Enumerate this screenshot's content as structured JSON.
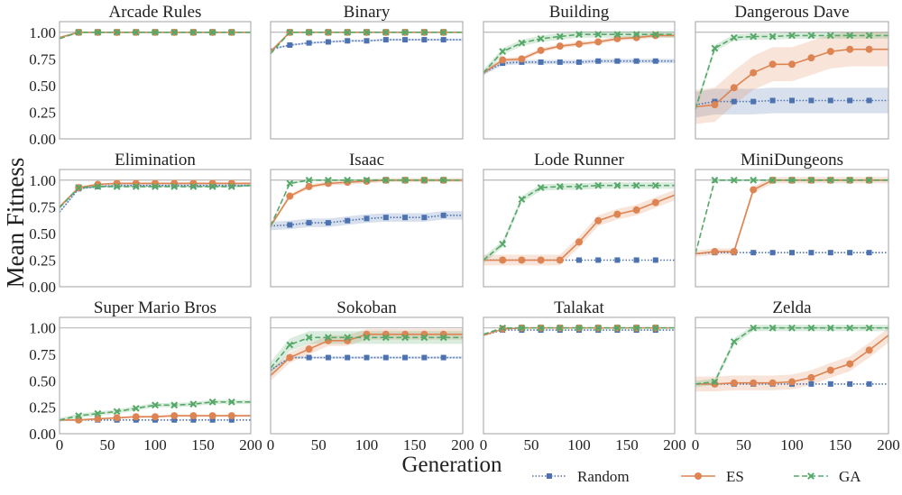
{
  "figure": {
    "ylabel": "Mean Fitness",
    "xlabel": "Generation",
    "legend": [
      {
        "name": "Random",
        "color": "#4c72b0",
        "marker": "square",
        "linestyle": "dotted"
      },
      {
        "name": "ES",
        "color": "#dd8452",
        "marker": "circle",
        "linestyle": "solid"
      },
      {
        "name": "GA",
        "color": "#55a868",
        "marker": "x",
        "linestyle": "dashed"
      }
    ],
    "legend_placement": "bottom-right"
  },
  "chart_data": [
    {
      "type": "line",
      "title": "Arcade Rules",
      "xlim": [
        0,
        200
      ],
      "ylim": [
        0,
        1.1
      ],
      "xticks": [
        0,
        50,
        100,
        150,
        200
      ],
      "yticks": [
        "0.00",
        "0.25",
        "0.50",
        "0.75",
        "1.00"
      ],
      "reference_line": 1.0,
      "x": [
        0,
        20,
        40,
        60,
        80,
        100,
        120,
        140,
        160,
        180,
        200
      ],
      "series": [
        {
          "name": "Random",
          "values": [
            0.95,
            1,
            1,
            1,
            1,
            1,
            1,
            1,
            1,
            1,
            1
          ],
          "band": 0.0
        },
        {
          "name": "ES",
          "values": [
            0.95,
            1,
            1,
            1,
            1,
            1,
            1,
            1,
            1,
            1,
            1
          ],
          "band": 0.0
        },
        {
          "name": "GA",
          "values": [
            0.94,
            1,
            1,
            1,
            1,
            1,
            1,
            1,
            1,
            1,
            1
          ],
          "band": 0.0
        }
      ]
    },
    {
      "type": "line",
      "title": "Binary",
      "xlim": [
        0,
        200
      ],
      "ylim": [
        0,
        1.1
      ],
      "xticks": [
        0,
        50,
        100,
        150,
        200
      ],
      "yticks": [
        "0.00",
        "0.25",
        "0.50",
        "0.75",
        "1.00"
      ],
      "reference_line": 1.0,
      "x": [
        0,
        20,
        40,
        60,
        80,
        100,
        120,
        140,
        160,
        180,
        200
      ],
      "series": [
        {
          "name": "Random",
          "values": [
            0.84,
            0.88,
            0.9,
            0.91,
            0.92,
            0.92,
            0.93,
            0.93,
            0.93,
            0.93,
            0.93
          ],
          "band": 0.01
        },
        {
          "name": "ES",
          "values": [
            0.82,
            1,
            1,
            1,
            1,
            1,
            1,
            1,
            1,
            1,
            1
          ],
          "band": 0.0
        },
        {
          "name": "GA",
          "values": [
            0.8,
            1,
            1,
            1,
            1,
            1,
            1,
            1,
            1,
            1,
            1
          ],
          "band": 0.0
        }
      ]
    },
    {
      "type": "line",
      "title": "Building",
      "xlim": [
        0,
        200
      ],
      "ylim": [
        0,
        1.1
      ],
      "xticks": [
        0,
        50,
        100,
        150,
        200
      ],
      "yticks": [
        "0.00",
        "0.25",
        "0.50",
        "0.75",
        "1.00"
      ],
      "reference_line": 1.0,
      "x": [
        0,
        20,
        40,
        60,
        80,
        100,
        120,
        140,
        160,
        180,
        200
      ],
      "series": [
        {
          "name": "Random",
          "values": [
            0.62,
            0.71,
            0.72,
            0.72,
            0.72,
            0.72,
            0.73,
            0.73,
            0.73,
            0.73,
            0.73
          ],
          "band": 0.02
        },
        {
          "name": "ES",
          "values": [
            0.62,
            0.74,
            0.75,
            0.83,
            0.87,
            0.89,
            0.91,
            0.94,
            0.95,
            0.97,
            0.97
          ],
          "band": 0.02
        },
        {
          "name": "GA",
          "values": [
            0.62,
            0.82,
            0.9,
            0.94,
            0.96,
            0.98,
            0.98,
            0.98,
            0.98,
            0.98,
            0.98
          ],
          "band": 0.03
        }
      ]
    },
    {
      "type": "line",
      "title": "Dangerous Dave",
      "xlim": [
        0,
        200
      ],
      "ylim": [
        0,
        1.1
      ],
      "xticks": [
        0,
        50,
        100,
        150,
        200
      ],
      "yticks": [
        "0.00",
        "0.25",
        "0.50",
        "0.75",
        "1.00"
      ],
      "reference_line": 1.0,
      "x": [
        0,
        20,
        40,
        60,
        80,
        100,
        120,
        140,
        160,
        180,
        200
      ],
      "series": [
        {
          "name": "Random",
          "values": [
            0.32,
            0.35,
            0.35,
            0.35,
            0.36,
            0.36,
            0.36,
            0.36,
            0.36,
            0.36,
            0.36
          ],
          "band": 0.12
        },
        {
          "name": "ES",
          "values": [
            0.3,
            0.32,
            0.48,
            0.62,
            0.7,
            0.7,
            0.76,
            0.82,
            0.84,
            0.84,
            0.84
          ],
          "band": 0.16
        },
        {
          "name": "GA",
          "values": [
            0.28,
            0.85,
            0.95,
            0.96,
            0.96,
            0.97,
            0.97,
            0.97,
            0.97,
            0.97,
            0.97
          ],
          "band": 0.03
        }
      ]
    },
    {
      "type": "line",
      "title": "Elimination",
      "xlim": [
        0,
        200
      ],
      "ylim": [
        0,
        1.1
      ],
      "xticks": [
        0,
        50,
        100,
        150,
        200
      ],
      "yticks": [
        "0.00",
        "0.25",
        "0.50",
        "0.75",
        "1.00"
      ],
      "reference_line": 1.0,
      "x": [
        0,
        20,
        40,
        60,
        80,
        100,
        120,
        140,
        160,
        180,
        200
      ],
      "series": [
        {
          "name": "Random",
          "values": [
            0.7,
            0.92,
            0.94,
            0.95,
            0.95,
            0.95,
            0.95,
            0.95,
            0.95,
            0.95,
            0.95
          ],
          "band": 0.01
        },
        {
          "name": "ES",
          "values": [
            0.75,
            0.93,
            0.96,
            0.97,
            0.97,
            0.97,
            0.97,
            0.97,
            0.97,
            0.97,
            0.97
          ],
          "band": 0.01
        },
        {
          "name": "GA",
          "values": [
            0.74,
            0.93,
            0.94,
            0.94,
            0.94,
            0.94,
            0.94,
            0.94,
            0.94,
            0.94,
            0.95
          ],
          "band": 0.01
        }
      ]
    },
    {
      "type": "line",
      "title": "Isaac",
      "xlim": [
        0,
        200
      ],
      "ylim": [
        0,
        1.1
      ],
      "xticks": [
        0,
        50,
        100,
        150,
        200
      ],
      "yticks": [
        "0.00",
        "0.25",
        "0.50",
        "0.75",
        "1.00"
      ],
      "reference_line": 1.0,
      "x": [
        0,
        20,
        40,
        60,
        80,
        100,
        120,
        140,
        160,
        180,
        200
      ],
      "series": [
        {
          "name": "Random",
          "values": [
            0.57,
            0.58,
            0.6,
            0.6,
            0.62,
            0.64,
            0.65,
            0.65,
            0.65,
            0.67,
            0.67
          ],
          "band": 0.04
        },
        {
          "name": "ES",
          "values": [
            0.57,
            0.85,
            0.94,
            0.97,
            0.98,
            0.99,
            1,
            1,
            1,
            1,
            1
          ],
          "band": 0.02
        },
        {
          "name": "GA",
          "values": [
            0.57,
            0.97,
            1,
            1,
            1,
            1,
            1,
            1,
            1,
            1,
            1
          ],
          "band": 0.01
        }
      ]
    },
    {
      "type": "line",
      "title": "Lode Runner",
      "xlim": [
        0,
        200
      ],
      "ylim": [
        0,
        1.1
      ],
      "xticks": [
        0,
        50,
        100,
        150,
        200
      ],
      "yticks": [
        "0.00",
        "0.25",
        "0.50",
        "0.75",
        "1.00"
      ],
      "reference_line": 1.0,
      "x": [
        0,
        20,
        40,
        60,
        80,
        100,
        120,
        140,
        160,
        180,
        200
      ],
      "series": [
        {
          "name": "Random",
          "values": [
            0.25,
            0.25,
            0.25,
            0.25,
            0.25,
            0.25,
            0.25,
            0.25,
            0.25,
            0.25,
            0.25
          ],
          "band": 0.0
        },
        {
          "name": "ES",
          "values": [
            0.25,
            0.25,
            0.25,
            0.25,
            0.25,
            0.42,
            0.62,
            0.68,
            0.72,
            0.79,
            0.86
          ],
          "band": 0.05
        },
        {
          "name": "GA",
          "values": [
            0.25,
            0.4,
            0.82,
            0.93,
            0.94,
            0.94,
            0.95,
            0.95,
            0.95,
            0.95,
            0.95
          ],
          "band": 0.03
        }
      ]
    },
    {
      "type": "line",
      "title": "MiniDungeons",
      "xlim": [
        0,
        200
      ],
      "ylim": [
        0,
        1.1
      ],
      "xticks": [
        0,
        50,
        100,
        150,
        200
      ],
      "yticks": [
        "0.00",
        "0.25",
        "0.50",
        "0.75",
        "1.00"
      ],
      "reference_line": 1.0,
      "x": [
        0,
        20,
        40,
        60,
        80,
        100,
        120,
        140,
        160,
        180,
        200
      ],
      "series": [
        {
          "name": "Random",
          "values": [
            0.31,
            0.32,
            0.32,
            0.32,
            0.32,
            0.32,
            0.32,
            0.32,
            0.32,
            0.32,
            0.32
          ],
          "band": 0.0
        },
        {
          "name": "ES",
          "values": [
            0.31,
            0.33,
            0.33,
            0.91,
            1,
            1,
            1,
            1,
            1,
            1,
            1
          ],
          "band": 0.03
        },
        {
          "name": "GA",
          "values": [
            0.31,
            1,
            1,
            1,
            1,
            1,
            1,
            1,
            1,
            1,
            1
          ],
          "band": 0.01
        }
      ]
    },
    {
      "type": "line",
      "title": "Super Mario Bros",
      "xlim": [
        0,
        200
      ],
      "ylim": [
        0,
        1.1
      ],
      "xticks": [
        0,
        50,
        100,
        150,
        200
      ],
      "yticks": [
        "0.00",
        "0.25",
        "0.50",
        "0.75",
        "1.00"
      ],
      "reference_line": 1.0,
      "x": [
        0,
        20,
        40,
        60,
        80,
        100,
        120,
        140,
        160,
        180,
        200
      ],
      "series": [
        {
          "name": "Random",
          "values": [
            0.13,
            0.13,
            0.13,
            0.13,
            0.13,
            0.13,
            0.13,
            0.13,
            0.13,
            0.13,
            0.13
          ],
          "band": 0.0
        },
        {
          "name": "ES",
          "values": [
            0.13,
            0.13,
            0.14,
            0.15,
            0.16,
            0.16,
            0.17,
            0.17,
            0.17,
            0.17,
            0.17
          ],
          "band": 0.01
        },
        {
          "name": "GA",
          "values": [
            0.13,
            0.17,
            0.19,
            0.21,
            0.24,
            0.27,
            0.27,
            0.28,
            0.3,
            0.3,
            0.3
          ],
          "band": 0.02
        }
      ]
    },
    {
      "type": "line",
      "title": "Sokoban",
      "xlim": [
        0,
        200
      ],
      "ylim": [
        0,
        1.1
      ],
      "xticks": [
        0,
        50,
        100,
        150,
        200
      ],
      "yticks": [
        "0.00",
        "0.25",
        "0.50",
        "0.75",
        "1.00"
      ],
      "reference_line": 1.0,
      "x": [
        0,
        20,
        40,
        60,
        80,
        100,
        120,
        140,
        160,
        180,
        200
      ],
      "series": [
        {
          "name": "Random",
          "values": [
            0.6,
            0.72,
            0.72,
            0.72,
            0.72,
            0.72,
            0.72,
            0.72,
            0.72,
            0.72,
            0.72
          ],
          "band": 0.01
        },
        {
          "name": "ES",
          "values": [
            0.55,
            0.72,
            0.8,
            0.88,
            0.88,
            0.94,
            0.94,
            0.94,
            0.94,
            0.94,
            0.94
          ],
          "band": 0.05
        },
        {
          "name": "GA",
          "values": [
            0.62,
            0.84,
            0.91,
            0.91,
            0.91,
            0.91,
            0.91,
            0.91,
            0.91,
            0.91,
            0.91
          ],
          "band": 0.06
        }
      ]
    },
    {
      "type": "line",
      "title": "Talakat",
      "xlim": [
        0,
        200
      ],
      "ylim": [
        0,
        1.1
      ],
      "xticks": [
        0,
        50,
        100,
        150,
        200
      ],
      "yticks": [
        "0.00",
        "0.25",
        "0.50",
        "0.75",
        "1.00"
      ],
      "reference_line": 1.0,
      "x": [
        0,
        20,
        40,
        60,
        80,
        100,
        120,
        140,
        160,
        180,
        200
      ],
      "series": [
        {
          "name": "Random",
          "values": [
            0.93,
            0.98,
            0.98,
            0.98,
            0.98,
            0.98,
            0.98,
            0.98,
            0.98,
            0.98,
            0.98
          ],
          "band": 0.0
        },
        {
          "name": "ES",
          "values": [
            0.93,
            0.99,
            1,
            1,
            1,
            1,
            1,
            1,
            1,
            1,
            1
          ],
          "band": 0.0
        },
        {
          "name": "GA",
          "values": [
            0.94,
            1,
            1,
            1,
            1,
            1,
            1,
            1,
            1,
            1,
            1
          ],
          "band": 0.0
        }
      ]
    },
    {
      "type": "line",
      "title": "Zelda",
      "xlim": [
        0,
        200
      ],
      "ylim": [
        0,
        1.1
      ],
      "xticks": [
        0,
        50,
        100,
        150,
        200
      ],
      "yticks": [
        "0.00",
        "0.25",
        "0.50",
        "0.75",
        "1.00"
      ],
      "reference_line": 1.0,
      "x": [
        0,
        20,
        40,
        60,
        80,
        100,
        120,
        140,
        160,
        180,
        200
      ],
      "series": [
        {
          "name": "Random",
          "values": [
            0.47,
            0.47,
            0.47,
            0.47,
            0.47,
            0.47,
            0.47,
            0.47,
            0.47,
            0.47,
            0.47
          ],
          "band": 0.0
        },
        {
          "name": "ES",
          "values": [
            0.47,
            0.47,
            0.48,
            0.48,
            0.48,
            0.49,
            0.53,
            0.6,
            0.66,
            0.79,
            0.93
          ],
          "band": 0.07
        },
        {
          "name": "GA",
          "values": [
            0.47,
            0.49,
            0.87,
            1,
            1,
            1,
            1,
            1,
            1,
            1,
            1
          ],
          "band": 0.03
        }
      ]
    }
  ]
}
